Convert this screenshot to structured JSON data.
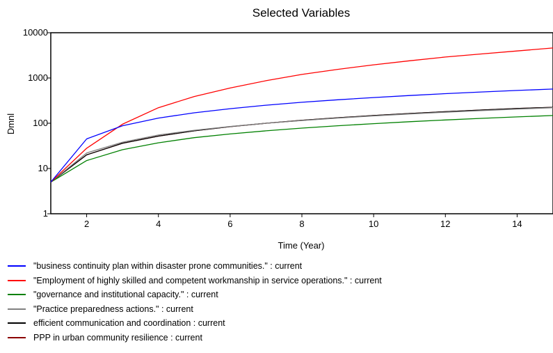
{
  "chart_data": {
    "type": "line",
    "title": "Selected Variables",
    "xlabel": "Time (Year)",
    "ylabel": "Dmnl",
    "yscale": "log",
    "xlim": [
      1,
      15
    ],
    "ylim": [
      1,
      10000
    ],
    "xticks": [
      2,
      4,
      6,
      8,
      10,
      12,
      14
    ],
    "yticks": [
      1,
      10,
      100,
      1000,
      10000
    ],
    "x": [
      1,
      2,
      3,
      4,
      5,
      6,
      7,
      8,
      9,
      10,
      11,
      12,
      13,
      14,
      15
    ],
    "grid": false,
    "legend_position": "bottom",
    "series": [
      {
        "name": "\"business continuity plan within disaster prone communities.\" : current",
        "color": "#0000ff",
        "values": [
          5,
          45,
          88,
          130,
          170,
          210,
          250,
          290,
          330,
          370,
          410,
          450,
          490,
          530,
          570
        ]
      },
      {
        "name": "\"Employment of highly skilled and competent workmanship in service operations.\" : current",
        "color": "#ff0000",
        "values": [
          5,
          28,
          95,
          220,
          390,
          600,
          870,
          1200,
          1550,
          1950,
          2400,
          2900,
          3400,
          3950,
          4600
        ]
      },
      {
        "name": "\"governance and institutional capacity.\" : current",
        "color": "#008000",
        "values": [
          5,
          15,
          26,
          37,
          48,
          58,
          68,
          78,
          88,
          98,
          108,
          118,
          128,
          138,
          148
        ]
      },
      {
        "name": "\"Practice preparedness actions.\" : current",
        "color": "#808080",
        "values": [
          5,
          22,
          38,
          55,
          70,
          85,
          100,
          115,
          130,
          145,
          160,
          175,
          190,
          205,
          220
        ]
      },
      {
        "name": "efficient communication and coordination : current",
        "color": "#000000",
        "values": [
          5,
          20,
          36,
          52,
          68,
          84,
          100,
          116,
          132,
          148,
          164,
          180,
          196,
          212,
          225
        ]
      },
      {
        "name": "PPP in urban community resilience : current",
        "color": "#8b0000",
        "values": [
          5,
          20,
          36,
          52,
          68,
          84,
          100,
          116,
          132,
          148,
          164,
          180,
          196,
          212,
          225
        ]
      }
    ]
  }
}
